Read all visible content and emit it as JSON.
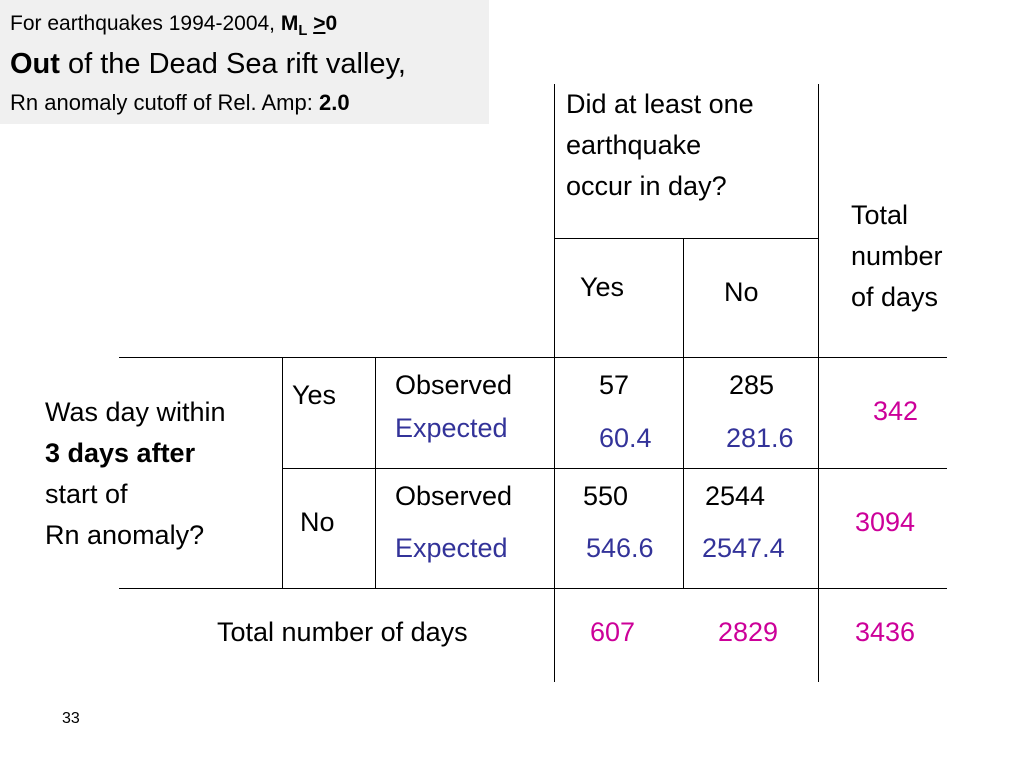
{
  "caption": {
    "line1_prefix": "For earthquakes 1994-2004, ",
    "line1_m": "M",
    "line1_sub": "L",
    "line1_op": ">",
    "line1_val": "0",
    "line2_bold": "Out",
    "line2_rest": " of the Dead Sea rift valley,",
    "line3_prefix": "Rn anomaly cutoff of Rel. Amp: ",
    "line3_val": "2.0"
  },
  "column_header": {
    "line1": "Did  at least one",
    "line2": "earthquake",
    "line3": "occur in day?",
    "yes": "Yes",
    "no": "No"
  },
  "total_header": {
    "line1": "Total",
    "line2": "number",
    "line3": "of days"
  },
  "row_header": {
    "line1": "Was day within",
    "line2_bold": "3 days after",
    "line3": "start of",
    "line4": "Rn anomaly?"
  },
  "rows": [
    {
      "label": "Yes",
      "observed_label": "Observed",
      "expected_label": "Expected",
      "observed_yes": "57",
      "observed_no": "285",
      "expected_yes": "60.4",
      "expected_no": "281.6",
      "total": "342"
    },
    {
      "label": "No",
      "observed_label": "Observed",
      "expected_label": "Expected",
      "observed_yes": "550",
      "observed_no": "2544",
      "expected_yes": "546.6",
      "expected_no": "2547.4",
      "total": "3094"
    }
  ],
  "totals_row": {
    "label": "Total number of days",
    "yes": "607",
    "no": "2829",
    "grand": "3436"
  },
  "slide_number": "33",
  "colors": {
    "expected": "#333399",
    "totals": "#cc0099",
    "caption_bg": "#f0f0f0"
  }
}
